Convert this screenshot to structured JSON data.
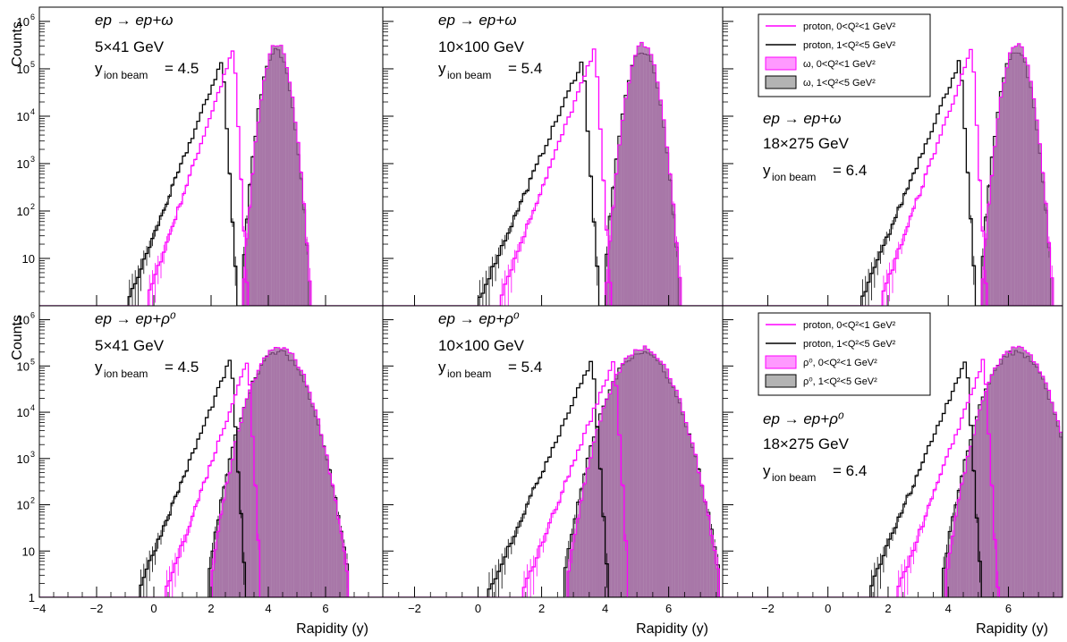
{
  "figure": {
    "ylabel": "Counts",
    "xlabel": "Rapidity (y)"
  },
  "chart_data": {
    "type": "histogram-grid",
    "log_y": true,
    "ylim": [
      1,
      2000000
    ],
    "x_tick_labels": [
      "−4",
      "−2",
      "0",
      "2",
      "4",
      "6"
    ],
    "y_tick_labels": [
      {
        "base": "1",
        "exp": ""
      },
      {
        "base": "10",
        "exp": ""
      },
      {
        "base": "10",
        "exp": "2"
      },
      {
        "base": "10",
        "exp": "3"
      },
      {
        "base": "10",
        "exp": "4"
      },
      {
        "base": "10",
        "exp": "5"
      },
      {
        "base": "10",
        "exp": "6"
      }
    ],
    "colors": {
      "proton_low_q2": "#ff00ff",
      "proton_high_q2": "#000000",
      "meson_low_q2_fill": "#ff99ff",
      "meson_high_q2_fill": "#b3b3b3",
      "overlap_fill": "#9e5c9e"
    },
    "legend": {
      "proton_low": "proton, 0<Q²<1 GeV²",
      "proton_high": "proton, 1<Q²<5 GeV²",
      "omega_low": "ω, 0<Q²<1 GeV²",
      "omega_high": "ω, 1<Q²<5 GeV²",
      "rho_low": "ρ⁰, 0<Q²<1 GeV²",
      "rho_high": "ρ⁰, 1<Q²<5 GeV²"
    },
    "panels": [
      {
        "reaction": "ep → ep+ω",
        "energy": "5×41 GeV",
        "ybeam_label": "y",
        "ybeam_sub": "ion beam",
        "ybeam_value": "= 4.5",
        "xlim": [
          -4,
          8
        ],
        "ion_beam_rapidity": 4.5,
        "meson": "omega",
        "meson_width": 0.24,
        "series": [
          {
            "name": "proton, 0<Q²<1 GeV²",
            "peak_y": 2.8,
            "peak_counts": 280000
          },
          {
            "name": "proton, 1<Q²<5 GeV²",
            "peak_y": 2.4,
            "peak_counts": 160000
          },
          {
            "name": "ω, 0<Q²<1 GeV²",
            "peak_y": 4.3,
            "peak_counts": 340000
          },
          {
            "name": "ω, 1<Q²<5 GeV²",
            "peak_y": 4.3,
            "peak_counts": 250000
          }
        ]
      },
      {
        "reaction": "ep → ep+ω",
        "energy": "10×100 GeV",
        "ybeam_label": "y",
        "ybeam_sub": "ion beam",
        "ybeam_value": "= 5.4",
        "xlim": [
          -3,
          7.7
        ],
        "ion_beam_rapidity": 5.4,
        "meson": "omega",
        "meson_width": 0.24,
        "series": [
          {
            "name": "proton, 0<Q²<1 GeV²",
            "peak_y": 3.7,
            "peak_counts": 280000
          },
          {
            "name": "proton, 1<Q²<5 GeV²",
            "peak_y": 3.3,
            "peak_counts": 160000
          },
          {
            "name": "ω, 0<Q²<1 GeV²",
            "peak_y": 5.2,
            "peak_counts": 340000
          },
          {
            "name": "ω, 1<Q²<5 GeV²",
            "peak_y": 5.2,
            "peak_counts": 250000
          }
        ]
      },
      {
        "reaction": "ep → ep+ω",
        "energy": "18×275 GeV",
        "ybeam_label": "y",
        "ybeam_sub": "ion beam",
        "ybeam_value": "= 6.4",
        "xlim": [
          -3.5,
          7.8
        ],
        "ion_beam_rapidity": 6.4,
        "meson": "omega",
        "meson_width": 0.24,
        "series": [
          {
            "name": "proton, 0<Q²<1 GeV²",
            "peak_y": 4.8,
            "peak_counts": 280000
          },
          {
            "name": "proton, 1<Q²<5 GeV²",
            "peak_y": 4.4,
            "peak_counts": 160000
          },
          {
            "name": "ω, 0<Q²<1 GeV²",
            "peak_y": 6.3,
            "peak_counts": 340000
          },
          {
            "name": "ω, 1<Q²<5 GeV²",
            "peak_y": 6.3,
            "peak_counts": 250000
          }
        ]
      },
      {
        "reaction": "ep → ep+ρ⁰",
        "energy": "5×41 GeV",
        "ybeam_label": "y",
        "ybeam_sub": "ion beam",
        "ybeam_value": "= 4.5",
        "xlim": [
          -4,
          8
        ],
        "ion_beam_rapidity": 4.5,
        "meson": "rho",
        "meson_width": 0.5,
        "series": [
          {
            "name": "proton, 0<Q²<1 GeV²",
            "peak_y": 3.3,
            "peak_counts": 150000
          },
          {
            "name": "proton, 1<Q²<5 GeV²",
            "peak_y": 2.7,
            "peak_counts": 150000
          },
          {
            "name": "ρ⁰, 0<Q²<1 GeV²",
            "peak_y": 4.4,
            "peak_counts": 250000
          },
          {
            "name": "ρ⁰, 1<Q²<5 GeV²",
            "peak_y": 4.4,
            "peak_counts": 200000
          }
        ]
      },
      {
        "reaction": "ep → ep+ρ⁰",
        "energy": "10×100 GeV",
        "ybeam_label": "y",
        "ybeam_sub": "ion beam",
        "ybeam_value": "= 5.4",
        "xlim": [
          -3,
          7.7
        ],
        "ion_beam_rapidity": 5.4,
        "meson": "rho",
        "meson_width": 0.5,
        "series": [
          {
            "name": "proton, 0<Q²<1 GeV²",
            "peak_y": 4.3,
            "peak_counts": 150000
          },
          {
            "name": "proton, 1<Q²<5 GeV²",
            "peak_y": 3.6,
            "peak_counts": 150000
          },
          {
            "name": "ρ⁰, 0<Q²<1 GeV²",
            "peak_y": 5.2,
            "peak_counts": 250000
          },
          {
            "name": "ρ⁰, 1<Q²<5 GeV²",
            "peak_y": 5.2,
            "peak_counts": 200000
          }
        ]
      },
      {
        "reaction": "ep → ep+ρ⁰",
        "energy": "18×275 GeV",
        "ybeam_label": "y",
        "ybeam_sub": "ion beam",
        "ybeam_value": "= 6.4",
        "xlim": [
          -3.5,
          7.8
        ],
        "ion_beam_rapidity": 6.4,
        "meson": "rho",
        "meson_width": 0.5,
        "series": [
          {
            "name": "proton, 0<Q²<1 GeV²",
            "peak_y": 5.2,
            "peak_counts": 150000
          },
          {
            "name": "proton, 1<Q²<5 GeV²",
            "peak_y": 4.6,
            "peak_counts": 150000
          },
          {
            "name": "ρ⁰, 0<Q²<1 GeV²",
            "peak_y": 6.3,
            "peak_counts": 250000
          },
          {
            "name": "ρ⁰, 1<Q²<5 GeV²",
            "peak_y": 6.3,
            "peak_counts": 200000
          }
        ]
      }
    ]
  }
}
